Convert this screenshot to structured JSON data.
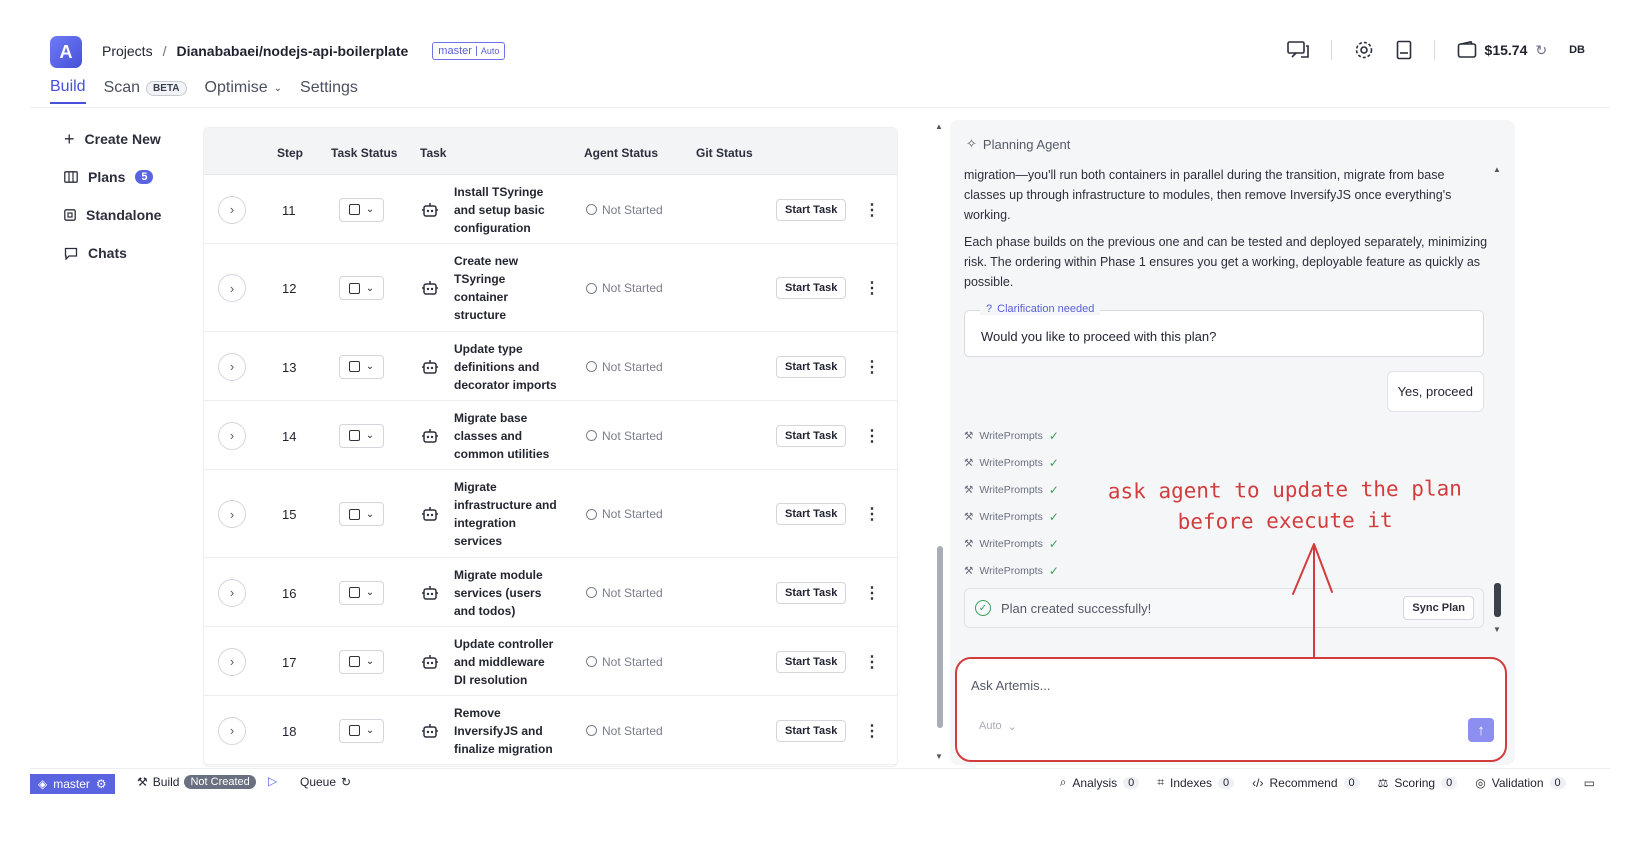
{
  "header": {
    "logo_letter": "A",
    "breadcrumb_projects": "Projects",
    "breadcrumb_sep": "/",
    "repo": "Dianababaei/nodejs-api-boilerplate",
    "branch": "master",
    "branch_mode": "Auto",
    "balance": "$15.74",
    "initials": "DB"
  },
  "tabs": [
    {
      "label": "Build"
    },
    {
      "label": "Scan",
      "badge": "BETA"
    },
    {
      "label": "Optimise"
    },
    {
      "label": "Settings"
    }
  ],
  "sidebar": {
    "items": [
      {
        "label": "Create New",
        "icon": "plus-icon"
      },
      {
        "label": "Plans",
        "icon": "plans-icon",
        "count": "5"
      },
      {
        "label": "Standalone",
        "icon": "standalone-icon"
      },
      {
        "label": "Chats",
        "icon": "chat-icon"
      }
    ]
  },
  "table": {
    "headers": [
      "Step",
      "Task Status",
      "Task",
      "Agent Status",
      "Git Status"
    ],
    "rows": [
      {
        "step": "11",
        "task": [
          "Install TSyringe",
          "and setup basic",
          "configuration"
        ],
        "agent_status": "Not Started",
        "action": "Start Task"
      },
      {
        "step": "12",
        "task": [
          "Create new",
          "TSyringe",
          "container",
          "structure"
        ],
        "agent_status": "Not Started",
        "action": "Start Task"
      },
      {
        "step": "13",
        "task": [
          "Update type",
          "definitions and",
          "decorator imports"
        ],
        "agent_status": "Not Started",
        "action": "Start Task"
      },
      {
        "step": "14",
        "task": [
          "Migrate base",
          "classes and",
          "common utilities"
        ],
        "agent_status": "Not Started",
        "action": "Start Task"
      },
      {
        "step": "15",
        "task": [
          "Migrate",
          "infrastructure and",
          "integration",
          "services"
        ],
        "agent_status": "Not Started",
        "action": "Start Task"
      },
      {
        "step": "16",
        "task": [
          "Migrate module",
          "services (users",
          "and todos)"
        ],
        "agent_status": "Not Started",
        "action": "Start Task"
      },
      {
        "step": "17",
        "task": [
          "Update controller",
          "and middleware",
          "DI resolution"
        ],
        "agent_status": "Not Started",
        "action": "Start Task"
      },
      {
        "step": "18",
        "task": [
          "Remove",
          "InversifyJS and",
          "finalize migration"
        ],
        "agent_status": "Not Started",
        "action": "Start Task"
      }
    ]
  },
  "chat": {
    "agent_title": "Planning Agent",
    "paragraph1": "migration—you'll run both containers in parallel during the transition, migrate from base classes up through infrastructure to modules, then remove InversifyJS once everything's working.",
    "paragraph2": "Each phase builds on the previous one and can be tested and deployed separately, minimizing risk. The ordering within Phase 1 ensures you get a working, deployable feature as quickly as possible.",
    "clarification_label": "Clarification needed",
    "clarification_question": "Would you like to proceed with this plan?",
    "user_reply": "Yes, proceed",
    "tools": [
      "WritePrompts",
      "WritePrompts",
      "WritePrompts",
      "WritePrompts",
      "WritePrompts",
      "WritePrompts"
    ],
    "success_text": "Plan created successfully!",
    "sync_label": "Sync Plan",
    "input_placeholder": "Ask Artemis...",
    "mode": "Auto"
  },
  "annotation": {
    "line1": "ask agent to update the plan",
    "line2": "before execute it",
    "color": "#d33c3c"
  },
  "footer": {
    "branch": "master",
    "build_label": "Build",
    "build_status": "Not Created",
    "queue_label": "Queue",
    "items": [
      {
        "label": "Analysis",
        "count": "0"
      },
      {
        "label": "Indexes",
        "count": "0"
      },
      {
        "label": "Recommend",
        "count": "0"
      },
      {
        "label": "Scoring",
        "count": "0"
      },
      {
        "label": "Validation",
        "count": "0"
      }
    ]
  },
  "colors": {
    "accent": "#4650d8",
    "success": "#3aa05a"
  }
}
